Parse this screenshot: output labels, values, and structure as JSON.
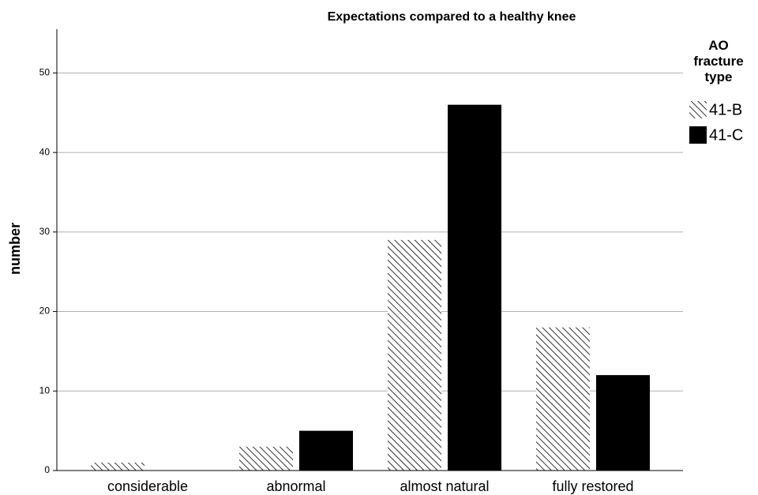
{
  "chart_data": {
    "type": "bar",
    "title": "Expectations compared to a healthy knee",
    "ylabel": "number",
    "legend_title": "AO fracture type",
    "legend_position": "right",
    "categories": [
      "considerable",
      "abnormal",
      "almost natural",
      "fully restored"
    ],
    "series": [
      {
        "name": "41-B",
        "color": "#000000",
        "pattern": "hatch",
        "values": [
          1,
          3,
          29,
          18
        ]
      },
      {
        "name": "41-C",
        "color": "#000000",
        "pattern": "solid",
        "values": [
          0,
          5,
          46,
          12
        ]
      }
    ],
    "ylim": [
      0,
      55.5
    ],
    "yticks": [
      0,
      10,
      20,
      30,
      40,
      50
    ],
    "grid": true
  }
}
